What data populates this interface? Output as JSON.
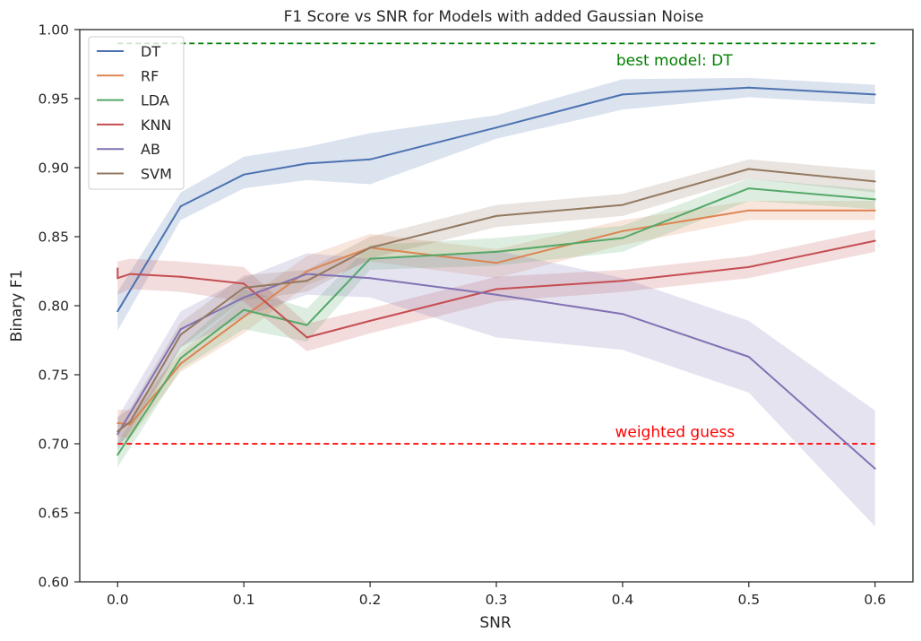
{
  "chart_data": {
    "type": "line",
    "title": "F1 Score vs SNR for Models with added Gaussian Noise",
    "xlabel": "SNR",
    "ylabel": "Binary F1",
    "xlim": [
      -0.03,
      0.63
    ],
    "ylim": [
      0.6,
      1.0
    ],
    "xticks": [
      0.0,
      0.1,
      0.2,
      0.3,
      0.4,
      0.5,
      0.6
    ],
    "xtick_labels": [
      "0.0",
      "0.1",
      "0.2",
      "0.3",
      "0.4",
      "0.5",
      "0.6"
    ],
    "yticks": [
      0.6,
      0.65,
      0.7,
      0.75,
      0.8,
      0.85,
      0.9,
      0.95,
      1.0
    ],
    "ytick_labels": [
      "0.60",
      "0.65",
      "0.70",
      "0.75",
      "0.80",
      "0.85",
      "0.90",
      "0.95",
      "1.00"
    ],
    "grid": false,
    "legend_position": "top-left",
    "series": [
      {
        "name": "DT",
        "color": "#4c72b0",
        "x": [
          0.0,
          0.05,
          0.1,
          0.15,
          0.2,
          0.3,
          0.4,
          0.5,
          0.6
        ],
        "y": [
          0.796,
          0.872,
          0.895,
          0.903,
          0.906,
          0.929,
          0.953,
          0.958,
          0.953
        ],
        "lower": [
          0.782,
          0.862,
          0.885,
          0.891,
          0.888,
          0.921,
          0.942,
          0.951,
          0.946
        ],
        "upper": [
          0.81,
          0.882,
          0.908,
          0.915,
          0.925,
          0.938,
          0.964,
          0.965,
          0.96
        ]
      },
      {
        "name": "RF",
        "color": "#dd8452",
        "x": [
          0.0,
          0.01,
          0.05,
          0.1,
          0.15,
          0.2,
          0.3,
          0.4,
          0.5,
          0.6
        ],
        "y": [
          0.715,
          0.714,
          0.758,
          0.792,
          0.825,
          0.842,
          0.831,
          0.854,
          0.869,
          0.869
        ],
        "lower": [
          0.705,
          0.704,
          0.752,
          0.78,
          0.815,
          0.832,
          0.82,
          0.844,
          0.862,
          0.862
        ],
        "upper": [
          0.725,
          0.724,
          0.766,
          0.804,
          0.836,
          0.852,
          0.841,
          0.862,
          0.876,
          0.876
        ]
      },
      {
        "name": "LDA",
        "color": "#55a868",
        "x": [
          0.0,
          0.05,
          0.1,
          0.15,
          0.2,
          0.3,
          0.4,
          0.5,
          0.6
        ],
        "y": [
          0.692,
          0.762,
          0.797,
          0.786,
          0.834,
          0.839,
          0.849,
          0.885,
          0.877
        ],
        "lower": [
          0.683,
          0.754,
          0.783,
          0.774,
          0.826,
          0.829,
          0.839,
          0.876,
          0.87
        ],
        "upper": [
          0.701,
          0.771,
          0.812,
          0.798,
          0.844,
          0.849,
          0.858,
          0.892,
          0.884
        ]
      },
      {
        "name": "KNN",
        "color": "#c44e52",
        "x": [
          0.0,
          0.0,
          0.01,
          0.05,
          0.1,
          0.15,
          0.2,
          0.3,
          0.4,
          0.5,
          0.6
        ],
        "y": [
          0.827,
          0.82,
          0.823,
          0.821,
          0.816,
          0.777,
          0.789,
          0.812,
          0.818,
          0.828,
          0.847
        ],
        "lower": [
          0.815,
          0.808,
          0.812,
          0.81,
          0.803,
          0.767,
          0.78,
          0.803,
          0.81,
          0.82,
          0.839
        ],
        "upper": [
          0.839,
          0.832,
          0.834,
          0.832,
          0.828,
          0.787,
          0.798,
          0.821,
          0.826,
          0.836,
          0.855
        ]
      },
      {
        "name": "AB",
        "color": "#8172b3",
        "x": [
          0.0,
          0.05,
          0.1,
          0.15,
          0.2,
          0.3,
          0.4,
          0.5,
          0.6
        ],
        "y": [
          0.707,
          0.783,
          0.806,
          0.823,
          0.82,
          0.808,
          0.794,
          0.763,
          0.682
        ],
        "lower": [
          0.695,
          0.77,
          0.792,
          0.808,
          0.806,
          0.777,
          0.768,
          0.737,
          0.64
        ],
        "upper": [
          0.719,
          0.796,
          0.82,
          0.838,
          0.834,
          0.84,
          0.82,
          0.789,
          0.724
        ]
      },
      {
        "name": "SVM",
        "color": "#937860",
        "x": [
          0.0,
          0.01,
          0.05,
          0.1,
          0.15,
          0.2,
          0.3,
          0.4,
          0.5,
          0.6
        ],
        "y": [
          0.709,
          0.716,
          0.779,
          0.813,
          0.818,
          0.842,
          0.865,
          0.873,
          0.899,
          0.89
        ],
        "lower": [
          0.699,
          0.706,
          0.77,
          0.804,
          0.81,
          0.834,
          0.857,
          0.865,
          0.892,
          0.882
        ],
        "upper": [
          0.719,
          0.726,
          0.788,
          0.822,
          0.826,
          0.85,
          0.873,
          0.881,
          0.906,
          0.898
        ]
      }
    ],
    "reference_lines": [
      {
        "y": 0.99,
        "color": "#008000",
        "style": "dashed"
      },
      {
        "y": 0.7,
        "color": "#ff0000",
        "style": "dashed"
      }
    ],
    "annotations": [
      {
        "text": "best model: DT",
        "x": 0.395,
        "y": 0.974,
        "color": "#008000"
      },
      {
        "text": "weighted guess",
        "x": 0.394,
        "y": 0.705,
        "color": "#ff0000"
      }
    ]
  }
}
